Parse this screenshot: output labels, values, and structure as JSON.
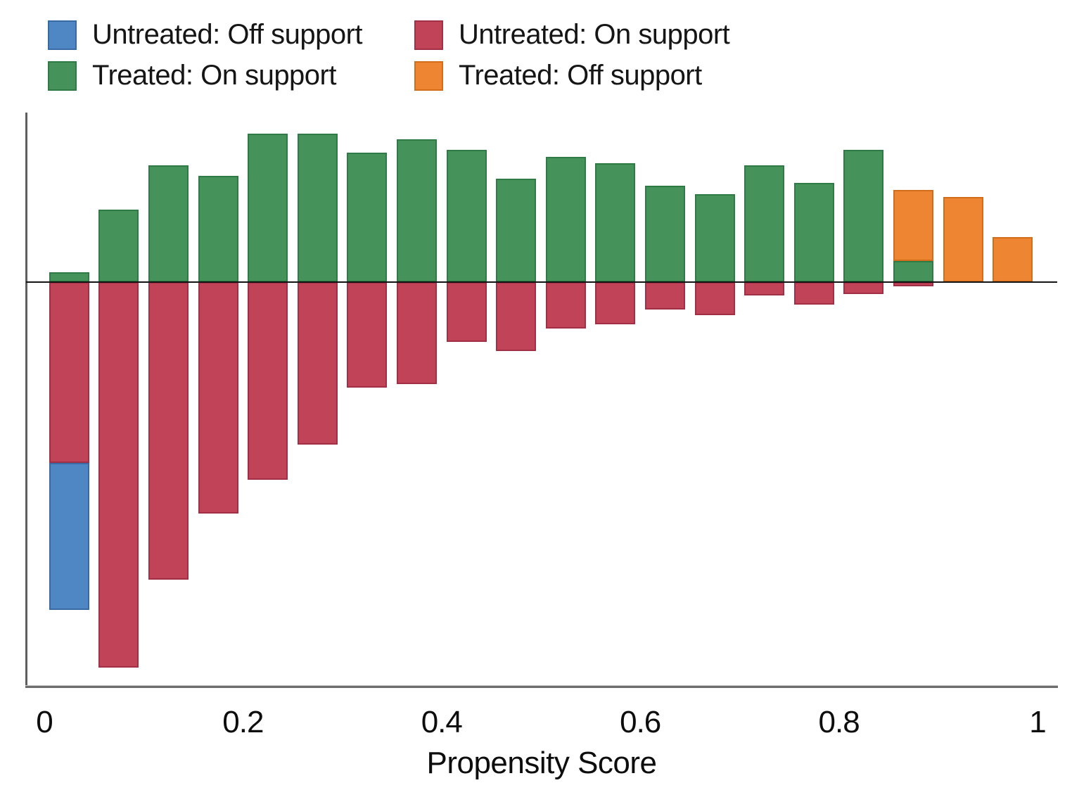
{
  "legend": {
    "items": [
      {
        "key": "untreated_off",
        "label": "Untreated: Off support",
        "color": "#4e87c3",
        "border_color": "#3a6aa3"
      },
      {
        "key": "untreated_on",
        "label": "Untreated: On support",
        "color": "#c04358",
        "border_color": "#a12f46"
      },
      {
        "key": "treated_on",
        "label": "Treated: On support",
        "color": "#45935a",
        "border_color": "#2f7a45"
      },
      {
        "key": "treated_off",
        "label": "Treated: Off support",
        "color": "#ee8532",
        "border_color": "#d26d1c"
      }
    ]
  },
  "chart_data": {
    "type": "bar",
    "subtype": "diverging_stacked_histogram",
    "title": "",
    "xlabel": "Propensity Score",
    "ylabel": "",
    "x_range": [
      0,
      1
    ],
    "x_ticks": [
      0,
      0.2,
      0.4,
      0.6,
      0.8,
      1
    ],
    "x_tick_labels": [
      "0",
      "0.2",
      "0.4",
      "0.6",
      "0.8",
      "1"
    ],
    "y_axis_labeled": false,
    "grid": false,
    "legend_position": "top-left",
    "bin_width": 0.05,
    "height_units": "pixels_at_1524x1123_no_numeric_y_axis_shown",
    "orientation": "treated_above_zero_line_untreated_below",
    "series": [
      {
        "name": "Treated: On support",
        "key": "treated_on",
        "side": "above",
        "color": "#45935a"
      },
      {
        "name": "Treated: Off support",
        "key": "treated_off",
        "side": "above",
        "color": "#ee8532"
      },
      {
        "name": "Untreated: On support",
        "key": "untreated_on",
        "side": "below",
        "color": "#c04358"
      },
      {
        "name": "Untreated: Off support",
        "key": "untreated_off",
        "side": "below",
        "color": "#4e87c3"
      }
    ],
    "bins": [
      {
        "center": 0.025,
        "treated_on": 14,
        "treated_off": 0,
        "untreated_on": 257,
        "untreated_off": 209
      },
      {
        "center": 0.075,
        "treated_on": 103,
        "treated_off": 0,
        "untreated_on": 548,
        "untreated_off": 0
      },
      {
        "center": 0.125,
        "treated_on": 166,
        "treated_off": 0,
        "untreated_on": 423,
        "untreated_off": 0
      },
      {
        "center": 0.175,
        "treated_on": 151,
        "treated_off": 0,
        "untreated_on": 329,
        "untreated_off": 0
      },
      {
        "center": 0.225,
        "treated_on": 211,
        "treated_off": 0,
        "untreated_on": 281,
        "untreated_off": 0
      },
      {
        "center": 0.275,
        "treated_on": 211,
        "treated_off": 0,
        "untreated_on": 231,
        "untreated_off": 0
      },
      {
        "center": 0.325,
        "treated_on": 184,
        "treated_off": 0,
        "untreated_on": 150,
        "untreated_off": 0
      },
      {
        "center": 0.375,
        "treated_on": 203,
        "treated_off": 0,
        "untreated_on": 145,
        "untreated_off": 0
      },
      {
        "center": 0.425,
        "treated_on": 188,
        "treated_off": 0,
        "untreated_on": 85,
        "untreated_off": 0
      },
      {
        "center": 0.475,
        "treated_on": 147,
        "treated_off": 0,
        "untreated_on": 98,
        "untreated_off": 0
      },
      {
        "center": 0.525,
        "treated_on": 178,
        "treated_off": 0,
        "untreated_on": 66,
        "untreated_off": 0
      },
      {
        "center": 0.575,
        "treated_on": 169,
        "treated_off": 0,
        "untreated_on": 60,
        "untreated_off": 0
      },
      {
        "center": 0.625,
        "treated_on": 137,
        "treated_off": 0,
        "untreated_on": 39,
        "untreated_off": 0
      },
      {
        "center": 0.675,
        "treated_on": 125,
        "treated_off": 0,
        "untreated_on": 47,
        "untreated_off": 0
      },
      {
        "center": 0.725,
        "treated_on": 166,
        "treated_off": 0,
        "untreated_on": 19,
        "untreated_off": 0
      },
      {
        "center": 0.775,
        "treated_on": 141,
        "treated_off": 0,
        "untreated_on": 32,
        "untreated_off": 0
      },
      {
        "center": 0.825,
        "treated_on": 188,
        "treated_off": 0,
        "untreated_on": 17,
        "untreated_off": 0
      },
      {
        "center": 0.875,
        "treated_on": 30,
        "treated_off": 101,
        "untreated_on": 6,
        "untreated_off": 0
      },
      {
        "center": 0.925,
        "treated_on": 0,
        "treated_off": 121,
        "untreated_on": 0,
        "untreated_off": 0
      },
      {
        "center": 0.975,
        "treated_on": 0,
        "treated_off": 64,
        "untreated_on": 0,
        "untreated_off": 0
      }
    ]
  }
}
